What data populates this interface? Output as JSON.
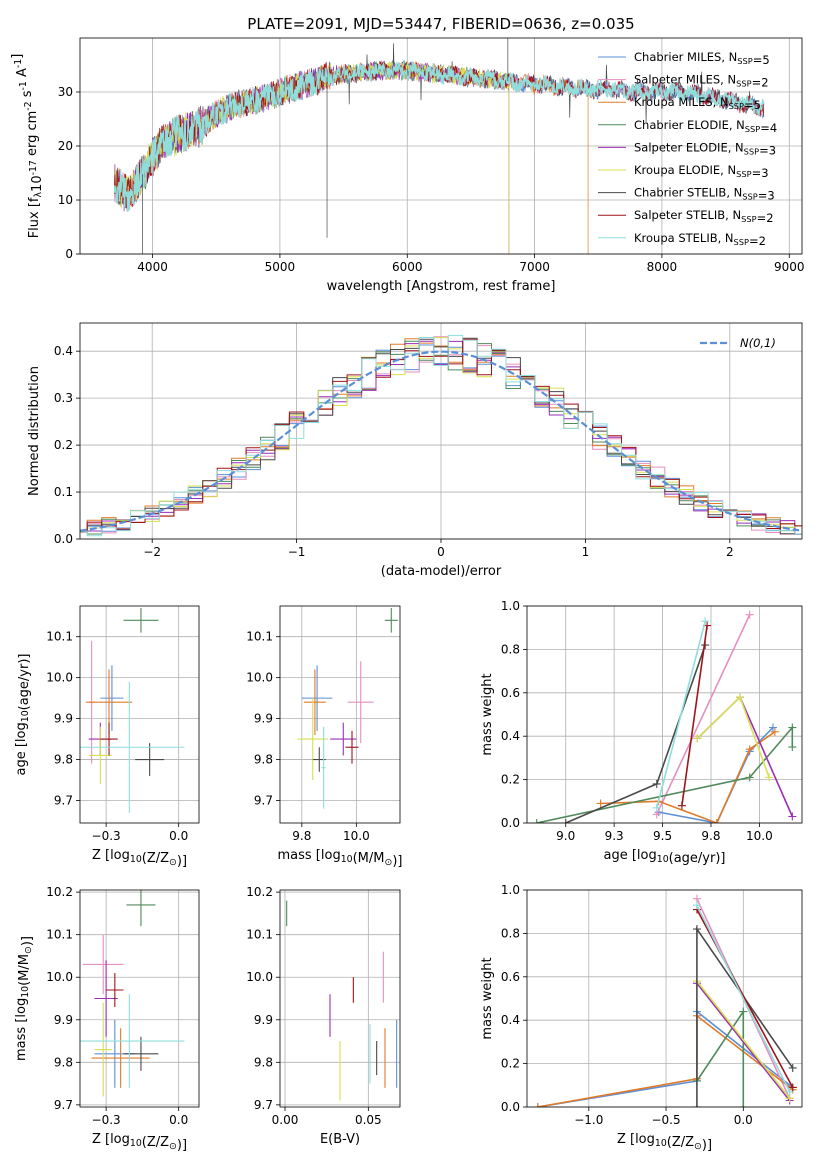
{
  "title": "PLATE=2091, MJD=53447, FIBERID=0636, z=0.035",
  "colors": {
    "chabrier_miles": "#5b8fd8",
    "salpeter_miles": "#e68ec2",
    "kroupa_miles": "#e07b2a",
    "chabrier_elodie": "#4f8a5a",
    "salpeter_elodie": "#9b2fb8",
    "kroupa_elodie": "#d8e050",
    "chabrier_stelib": "#4a4a4a",
    "salpeter_stelib": "#a01418",
    "kroupa_stelib": "#8fdedc",
    "normal_curve": "#5b8fd8"
  },
  "legend_spectrum": [
    "Chabrier MILES, N$_{SSP}$=5",
    "Salpeter MILES, N$_{SSP}$=2",
    "Kroupa MILES, N$_{SSP}$=5",
    "Chabrier ELODIE, N$_{SSP}$=4",
    "Salpeter ELODIE, N$_{SSP}$=3",
    "Kroupa ELODIE, N$_{SSP}$=3",
    "Chabrier STELIB, N$_{SSP}$=3",
    "Salpeter STELIB, N$_{SSP}$=2",
    "Kroupa STELIB, N$_{SSP}$=2"
  ],
  "chart_data": [
    {
      "id": "spectrum",
      "type": "line",
      "xlabel": "wavelength [Angstrom, rest frame]",
      "ylabel": "Flux [f$_\\lambda$10$^{-17}$ erg cm$^{-2}$ s$^{-1}$ A$^{-1}$]",
      "xlim": [
        3430,
        9100
      ],
      "ylim": [
        0,
        40
      ],
      "xticks": [
        4000,
        5000,
        6000,
        7000,
        8000,
        9000
      ],
      "yticks": [
        0,
        10,
        20,
        30
      ],
      "continuum": {
        "x": [
          3700,
          3800,
          3900,
          4000,
          4100,
          4200,
          4300,
          4400,
          4500,
          4600,
          4700,
          4800,
          4900,
          5000,
          5200,
          5400,
          5600,
          5800,
          6000,
          6200,
          6400,
          6600,
          6800,
          7000,
          7200,
          7400,
          7600,
          7800,
          8000,
          8200,
          8400,
          8600,
          8800
        ],
        "y": [
          13,
          11,
          14,
          18,
          21,
          22,
          23,
          24,
          26,
          27,
          28,
          28.5,
          29,
          30,
          31.5,
          33,
          33.5,
          34,
          34,
          33.5,
          33,
          32.5,
          32,
          31.5,
          31,
          30.5,
          30.5,
          30,
          30,
          30,
          29,
          28,
          27
        ]
      },
      "series": [
        {
          "name": "Chabrier MILES",
          "x_end": 8800
        },
        {
          "name": "Salpeter MILES",
          "x_end": 8800
        },
        {
          "name": "Kroupa MILES",
          "x_end": 7420
        },
        {
          "name": "Chabrier ELODIE",
          "x_end": 6800
        },
        {
          "name": "Salpeter ELODIE",
          "x_end": 6800
        },
        {
          "name": "Kroupa ELODIE",
          "x_end": 6800
        },
        {
          "name": "Chabrier STELIB",
          "x_end": 8800
        },
        {
          "name": "Salpeter STELIB",
          "x_end": 8800
        },
        {
          "name": "Kroupa STELIB",
          "x_end": 8800
        }
      ]
    },
    {
      "id": "residual_hist",
      "type": "histogram",
      "xlabel": "(data-model)/error",
      "ylabel": "Normed distribution",
      "xlim": [
        -2.5,
        2.5
      ],
      "ylim": [
        0,
        0.46
      ],
      "xticks": [
        -2,
        -1,
        0,
        1,
        2
      ],
      "yticks": [
        0.0,
        0.1,
        0.2,
        0.3,
        0.4
      ],
      "bin_width": 0.1,
      "curve_label": "$\\mathcal{N}(0,1)$",
      "grid": true,
      "legend_position": "upper right"
    },
    {
      "id": "age_vs_z",
      "type": "errorbar",
      "xlabel": "Z [log$_{10}$(Z/Z$_\\odot$)]",
      "ylabel": "age  [log$_{10}$(age/yr)]",
      "xlim": [
        -0.34,
        0.07
      ],
      "ylim": [
        9.645,
        10.175
      ],
      "xticks": [
        -0.25,
        0.0
      ],
      "yticks": [
        9.7,
        9.8,
        9.9,
        10.0,
        10.1
      ],
      "points": [
        {
          "x": -0.23,
          "y": 9.95,
          "xerr": 0.04,
          "yerr": 0.08
        },
        {
          "x": -0.3,
          "y": 9.94,
          "xerr": 0.01,
          "yerr": 0.15
        },
        {
          "x": -0.24,
          "y": 9.94,
          "xerr": 0.08,
          "yerr": 0.08
        },
        {
          "x": -0.13,
          "y": 10.14,
          "xerr": 0.06,
          "yerr": 0.03
        },
        {
          "x": -0.27,
          "y": 9.85,
          "xerr": 0.04,
          "yerr": 0.04
        },
        {
          "x": -0.27,
          "y": 9.81,
          "xerr": 0.04,
          "yerr": 0.07
        },
        {
          "x": -0.1,
          "y": 9.8,
          "xerr": 0.05,
          "yerr": 0.04
        },
        {
          "x": -0.24,
          "y": 9.85,
          "xerr": 0.03,
          "yerr": 0.04
        },
        {
          "x": -0.17,
          "y": 9.83,
          "xerr": 0.19,
          "yerr": 0.16
        }
      ]
    },
    {
      "id": "age_vs_mass",
      "type": "errorbar",
      "xlabel": "mass [log$_{10}$(M/M$_\\odot$)]",
      "xlim": [
        9.65,
        10.2
      ],
      "ylim": [
        9.645,
        10.175
      ],
      "xticks": [
        9.75,
        10.0
      ],
      "yticks": [
        9.7,
        9.8,
        9.9,
        10.0,
        10.1
      ],
      "points": [
        {
          "x": 9.82,
          "y": 9.95,
          "xerr": 0.07,
          "yerr": 0.08
        },
        {
          "x": 10.02,
          "y": 9.94,
          "xerr": 0.06,
          "yerr": 0.1
        },
        {
          "x": 9.81,
          "y": 9.94,
          "xerr": 0.05,
          "yerr": 0.08
        },
        {
          "x": 10.16,
          "y": 10.14,
          "xerr": 0.03,
          "yerr": 0.03
        },
        {
          "x": 9.94,
          "y": 9.85,
          "xerr": 0.06,
          "yerr": 0.04
        },
        {
          "x": 9.8,
          "y": 9.85,
          "xerr": 0.07,
          "yerr": 0.1
        },
        {
          "x": 9.83,
          "y": 9.8,
          "xerr": 0.03,
          "yerr": 0.03
        },
        {
          "x": 9.98,
          "y": 9.83,
          "xerr": 0.03,
          "yerr": 0.04
        },
        {
          "x": 9.85,
          "y": 9.78,
          "xerr": 0.01,
          "yerr": 0.1
        }
      ]
    },
    {
      "id": "weight_vs_age",
      "type": "line",
      "xlabel": "age  [log$_{10}$(age/yr)]",
      "ylabel": "mass weight",
      "xlim": [
        8.8,
        10.22
      ],
      "ylim": [
        0,
        1
      ],
      "xticks": [
        9.0,
        9.25,
        9.5,
        9.75,
        10.0
      ],
      "yticks": [
        0.0,
        0.2,
        0.4,
        0.6,
        0.8,
        1.0
      ],
      "series": [
        {
          "name": "Chabrier MILES",
          "x": [
            9.48,
            9.78,
            9.95,
            10.07
          ],
          "y": [
            0.05,
            0.0,
            0.33,
            0.44
          ]
        },
        {
          "name": "Salpeter MILES",
          "x": [
            9.47,
            9.95
          ],
          "y": [
            0.04,
            0.96
          ]
        },
        {
          "name": "Kroupa MILES",
          "x": [
            9.18,
            9.48,
            9.78,
            9.95,
            10.08
          ],
          "y": [
            0.09,
            0.1,
            0.0,
            0.34,
            0.42
          ]
        },
        {
          "name": "Chabrier ELODIE",
          "x": [
            8.85,
            9.95,
            10.17,
            10.17
          ],
          "y": [
            0.0,
            0.21,
            0.44,
            0.35
          ]
        },
        {
          "name": "Salpeter ELODIE",
          "x": [
            9.68,
            9.9,
            10.17
          ],
          "y": [
            0.39,
            0.58,
            0.03
          ]
        },
        {
          "name": "Kroupa ELODIE",
          "x": [
            9.68,
            9.9,
            10.05
          ],
          "y": [
            0.39,
            0.58,
            0.21
          ]
        },
        {
          "name": "Chabrier STELIB",
          "x": [
            9.0,
            9.47,
            9.72
          ],
          "y": [
            0.0,
            0.18,
            0.82
          ]
        },
        {
          "name": "Salpeter STELIB",
          "x": [
            9.6,
            9.73
          ],
          "y": [
            0.08,
            0.91
          ]
        },
        {
          "name": "Kroupa STELIB",
          "x": [
            9.47,
            9.72
          ],
          "y": [
            0.07,
            0.93
          ]
        }
      ]
    },
    {
      "id": "mass_vs_z",
      "type": "errorbar",
      "xlabel": "Z [log$_{10}$(Z/Z$_\\odot$)]",
      "ylabel": "mass [log$_{10}$(M/M$_\\odot$)]",
      "xlim": [
        -0.34,
        0.07
      ],
      "ylim": [
        9.695,
        10.205
      ],
      "xticks": [
        -0.25,
        0.0
      ],
      "yticks": [
        9.7,
        9.8,
        9.9,
        10.0,
        10.1,
        10.2
      ],
      "points": [
        {
          "x": -0.22,
          "y": 9.82,
          "xerr": 0.07,
          "yerr": 0.08
        },
        {
          "x": -0.26,
          "y": 10.03,
          "xerr": 0.07,
          "yerr": 0.07
        },
        {
          "x": -0.2,
          "y": 9.81,
          "xerr": 0.1,
          "yerr": 0.07
        },
        {
          "x": -0.13,
          "y": 10.17,
          "xerr": 0.05,
          "yerr": 0.05
        },
        {
          "x": -0.25,
          "y": 9.95,
          "xerr": 0.04,
          "yerr": 0.09
        },
        {
          "x": -0.26,
          "y": 9.83,
          "xerr": 0.03,
          "yerr": 0.11
        },
        {
          "x": -0.13,
          "y": 9.82,
          "xerr": 0.06,
          "yerr": 0.04
        },
        {
          "x": -0.22,
          "y": 9.97,
          "xerr": 0.03,
          "yerr": 0.04
        },
        {
          "x": -0.17,
          "y": 9.85,
          "xerr": 0.19,
          "yerr": 0.11
        }
      ]
    },
    {
      "id": "mass_vs_ebv",
      "type": "errorbar",
      "xlabel": "E(B-V)",
      "xlim": [
        -0.003,
        0.069
      ],
      "ylim": [
        9.695,
        10.205
      ],
      "xticks": [
        0.0,
        0.05
      ],
      "yticks": [
        9.7,
        9.8,
        9.9,
        10.0,
        10.1,
        10.2
      ],
      "points": [
        {
          "x": 0.067,
          "y": 9.82,
          "xerr": 0,
          "yerr": 0.08
        },
        {
          "x": 0.059,
          "y": 10.0,
          "xerr": 0,
          "yerr": 0.06
        },
        {
          "x": 0.06,
          "y": 9.81,
          "xerr": 0,
          "yerr": 0.07
        },
        {
          "x": 0.001,
          "y": 10.15,
          "xerr": 0,
          "yerr": 0.03
        },
        {
          "x": 0.027,
          "y": 9.91,
          "xerr": 0,
          "yerr": 0.05
        },
        {
          "x": 0.033,
          "y": 9.78,
          "xerr": 0,
          "yerr": 0.07
        },
        {
          "x": 0.055,
          "y": 9.81,
          "xerr": 0,
          "yerr": 0.04
        },
        {
          "x": 0.041,
          "y": 9.97,
          "xerr": 0,
          "yerr": 0.03
        },
        {
          "x": 0.051,
          "y": 9.82,
          "xerr": 0,
          "yerr": 0.07
        }
      ]
    },
    {
      "id": "weight_vs_z",
      "type": "line",
      "xlabel": "Z [log$_{10}$(Z/Z$_\\odot$)]",
      "ylabel": "mass weight",
      "xlim": [
        -1.4,
        0.38
      ],
      "ylim": [
        0,
        1
      ],
      "xticks": [
        -1.0,
        -0.5,
        0.0
      ],
      "yticks": [
        0.0,
        0.2,
        0.4,
        0.6,
        0.8,
        1.0
      ],
      "series": [
        {
          "name": "Chabrier MILES",
          "x": [
            -1.33,
            -0.3,
            -0.3,
            0.32
          ],
          "y": [
            0.0,
            0.12,
            0.44,
            0.09
          ]
        },
        {
          "name": "Salpeter MILES",
          "x": [
            -0.3,
            0.3
          ],
          "y": [
            0.96,
            0.04
          ]
        },
        {
          "name": "Kroupa MILES",
          "x": [
            -1.33,
            -0.3,
            -0.3,
            0.32
          ],
          "y": [
            0.0,
            0.13,
            0.42,
            0.08
          ]
        },
        {
          "name": "Chabrier ELODIE",
          "x": [
            -0.3,
            0.0,
            0.0
          ],
          "y": [
            0.12,
            0.44,
            0.0
          ]
        },
        {
          "name": "Salpeter ELODIE",
          "x": [
            -0.3,
            0.3
          ],
          "y": [
            0.57,
            0.03
          ]
        },
        {
          "name": "Kroupa ELODIE",
          "x": [
            -0.3,
            0.3
          ],
          "y": [
            0.58,
            0.04
          ]
        },
        {
          "name": "Chabrier STELIB",
          "x": [
            -0.3,
            -0.3,
            0.32
          ],
          "y": [
            0.0,
            0.82,
            0.18
          ]
        },
        {
          "name": "Salpeter STELIB",
          "x": [
            -0.3,
            0.32
          ],
          "y": [
            0.91,
            0.09
          ]
        },
        {
          "name": "Kroupa STELIB",
          "x": [
            -0.3,
            0.3
          ],
          "y": [
            0.93,
            0.07
          ]
        }
      ]
    }
  ]
}
